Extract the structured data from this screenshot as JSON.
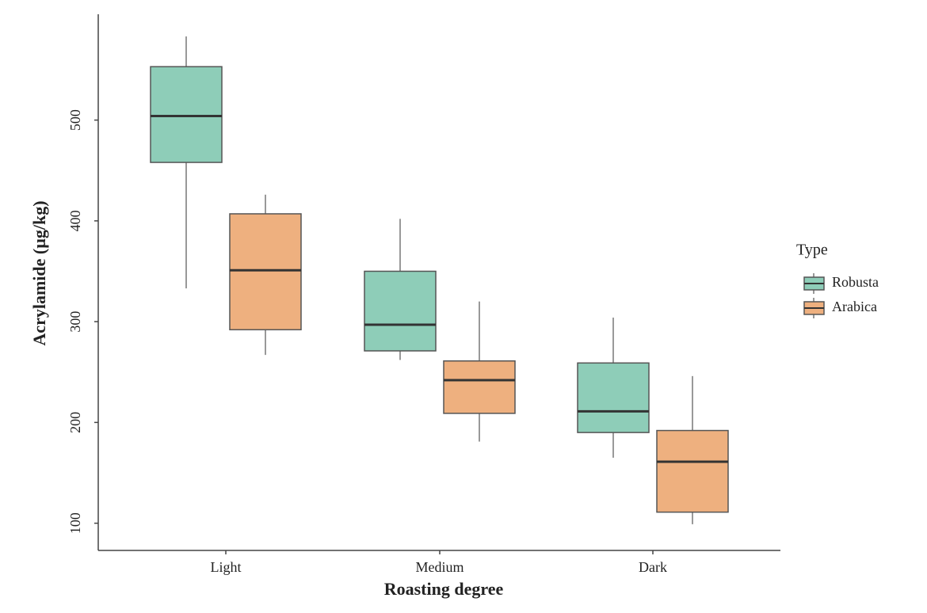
{
  "chart_data": {
    "type": "box",
    "x_label": "Roasting degree",
    "y_label": "Acrylamide (µg/kg)",
    "categories": [
      "Light",
      "Medium",
      "Dark"
    ],
    "legend_title": "Type",
    "legend": "right",
    "ylim": [
      73,
      605
    ],
    "yticks": [
      100,
      200,
      300,
      400,
      500
    ],
    "series": [
      {
        "name": "Robusta",
        "color": "#8ecdb8",
        "min": [
          333,
          262,
          165
        ],
        "q1": [
          458,
          271,
          190
        ],
        "median": [
          504,
          297,
          211
        ],
        "q3": [
          553,
          350,
          259
        ],
        "max": [
          583,
          402,
          304
        ]
      },
      {
        "name": "Arabica",
        "color": "#eeb07f",
        "min": [
          267,
          181,
          99
        ],
        "q1": [
          292,
          209,
          111
        ],
        "median": [
          351,
          242,
          161
        ],
        "q3": [
          407,
          261,
          192
        ],
        "max": [
          426,
          320,
          246
        ]
      }
    ]
  }
}
